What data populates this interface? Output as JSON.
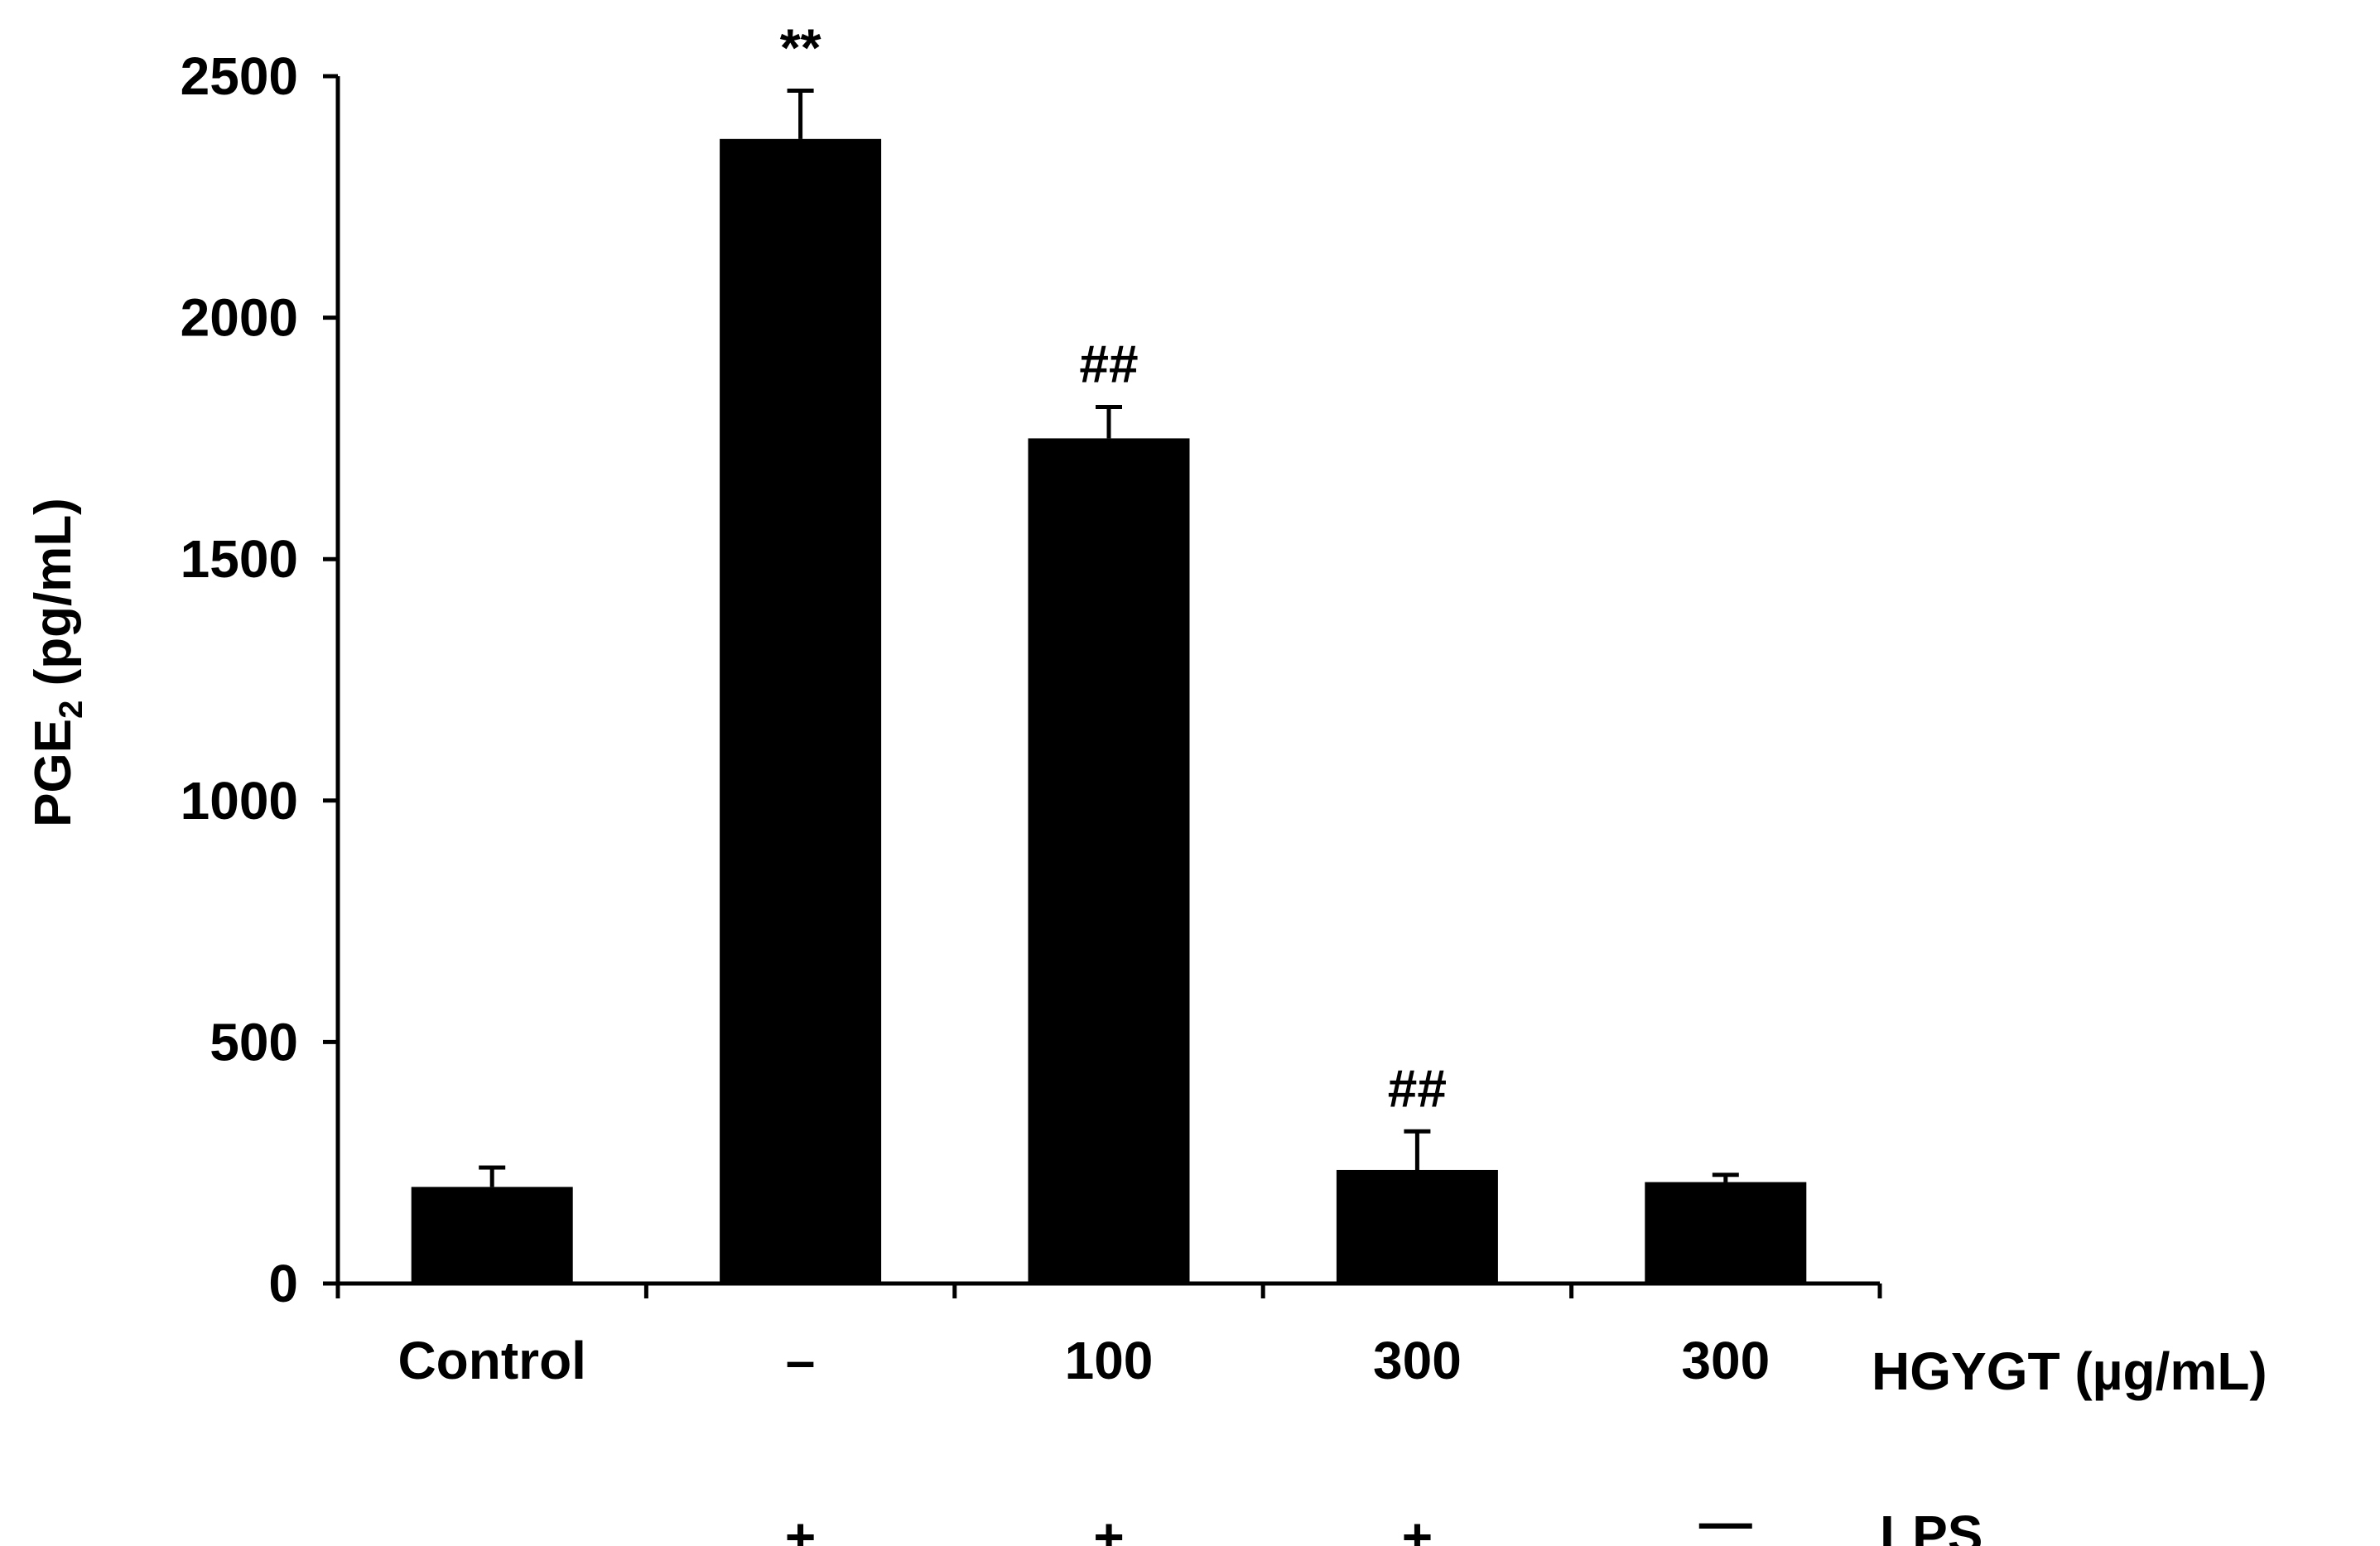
{
  "chart_data": {
    "type": "bar",
    "categories": [
      "Control",
      "–",
      "100",
      "300",
      "300"
    ],
    "values": [
      200,
      2370,
      1750,
      235,
      210
    ],
    "errors": [
      40,
      100,
      65,
      80,
      15
    ],
    "annotations": [
      "",
      "**",
      "##",
      "##",
      ""
    ],
    "lps_row": [
      "",
      "+",
      "+",
      "+",
      "—"
    ],
    "row_labels": {
      "treatment": "HGYGT (µg/mL)",
      "lps": "LPS"
    },
    "ylabel": {
      "main": "PGE",
      "subscript": "2",
      "rest": " (pg/mL)"
    },
    "xlabel": "",
    "ylim": [
      0,
      2500
    ],
    "yticks": [
      0,
      500,
      1000,
      1500,
      2000,
      2500
    ],
    "grid": false,
    "colors": {
      "bar": "#000000",
      "axis": "#000000",
      "background": "#ffffff"
    }
  }
}
